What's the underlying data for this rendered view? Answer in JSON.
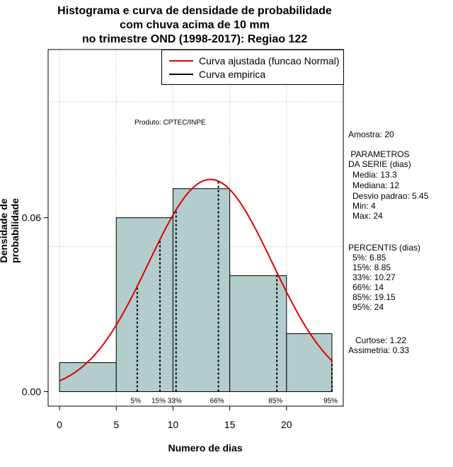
{
  "chart_data": {
    "type": "bar",
    "title_lines": [
      "Histograma e curva de densidade de probabilidade",
      "com chuva acima de 10 mm",
      "no trimestre OND (1998-2017): Regiao 122"
    ],
    "xlabel": "Numero de dias",
    "ylabel": "Densidade de probabilidade",
    "xlim": [
      -1,
      25
    ],
    "ylim": [
      -0.005,
      0.118
    ],
    "x_ticks": [
      0,
      5,
      10,
      15,
      20
    ],
    "y_ticks": [
      0.0,
      0.06
    ],
    "y_tick_labels": [
      "0.00",
      "0.06"
    ],
    "vgrid": [
      0,
      5,
      10,
      15,
      20
    ],
    "hgrid": [
      0.05,
      0.1
    ],
    "bins": [
      {
        "x0": 0,
        "x1": 5,
        "density": 0.01
      },
      {
        "x0": 5,
        "x1": 10,
        "density": 0.06
      },
      {
        "x0": 10,
        "x1": 15,
        "density": 0.07
      },
      {
        "x0": 15,
        "x1": 20,
        "density": 0.04
      },
      {
        "x0": 20,
        "x1": 24,
        "density": 0.02
      }
    ],
    "bar_color": "#b3cccc",
    "fit_color": "#e00000",
    "normal_fit": {
      "mean": 13.3,
      "sd": 5.45,
      "x_range": [
        0,
        24
      ]
    },
    "percentiles": [
      {
        "label": "5%",
        "x": 6.85
      },
      {
        "label": "15%",
        "x": 8.85
      },
      {
        "label": "33%",
        "x": 10.27
      },
      {
        "label": "66%",
        "x": 14
      },
      {
        "label": "85%",
        "x": 19.15
      },
      {
        "label": "95%",
        "x": 24
      }
    ],
    "legend": {
      "position": "top-right",
      "entries": [
        {
          "label": "Curva ajustada (funcao Normal)",
          "color": "#e00000"
        },
        {
          "label": "Curva empirica",
          "color": "#000000"
        }
      ]
    },
    "annotation": "Produto: CPTEC/INPE"
  },
  "side_panel": {
    "amostra": "Amostra: 20",
    "parametros_header": " PARAMETROS\nDA SERIE (dias)",
    "media": "Media: 13.3",
    "mediana": "Mediana: 12",
    "desvio": "Desvio padrao: 5.45",
    "min": "Min: 4",
    "max": "Max: 24",
    "percentis_header": "PERCENTIS (dias)",
    "p5": "5%: 6.85",
    "p15": "15%: 8.85",
    "p33": "33%: 10.27",
    "p66": "66%: 14",
    "p85": "85%: 19.15",
    "p95": "95%: 24",
    "curtose": "Curtose: 1.22",
    "assimetria": "Assimetria: 0.33"
  }
}
